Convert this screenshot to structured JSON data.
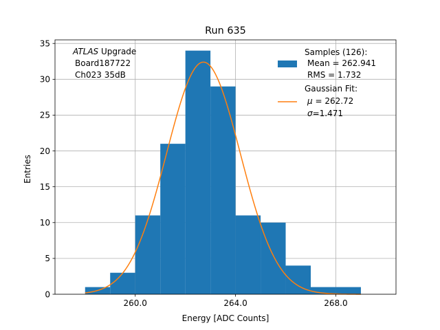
{
  "chart_data": {
    "type": "bar",
    "title": "Run 635",
    "xlabel": "Energy [ADC Counts]",
    "ylabel": "Entries",
    "xlim": [
      256.8,
      270.4
    ],
    "ylim": [
      0,
      35.5
    ],
    "xticks": [
      260,
      264,
      268
    ],
    "xtick_labels": [
      "260.0",
      "264.0",
      "268.0"
    ],
    "yticks": [
      0,
      5,
      10,
      15,
      20,
      25,
      30,
      35
    ],
    "ytick_labels": [
      "0",
      "5",
      "10",
      "15",
      "20",
      "25",
      "30",
      "35"
    ],
    "grid": true,
    "bin_edges": [
      258,
      259,
      260,
      261,
      262,
      263,
      264,
      265,
      266,
      267,
      268,
      269
    ],
    "counts": [
      1,
      3,
      11,
      21,
      34,
      29,
      11,
      10,
      4,
      1,
      1
    ],
    "fit": {
      "mu": 262.72,
      "sigma": 1.471,
      "amplitude": 32.4
    },
    "colors": {
      "histogram": "#1f77b4",
      "fit": "#ff7f0e",
      "grid": "#b0b0b0"
    },
    "annotation": {
      "line1_italic": "ATLAS",
      "line1_rest": " Upgrade",
      "line2": "Board187722",
      "line3": "Ch023 35dB"
    },
    "legend": {
      "placement": "top-right",
      "samples_label": "Samples (126):",
      "samples_mean": "Mean = 262.941",
      "samples_rms": "RMS = 1.732",
      "fit_label": "Gaussian Fit:",
      "fit_mu_symbol": "μ",
      "fit_mu_value": " = 262.72",
      "fit_sigma_symbol": "σ",
      "fit_sigma_value": "=1.471"
    }
  }
}
